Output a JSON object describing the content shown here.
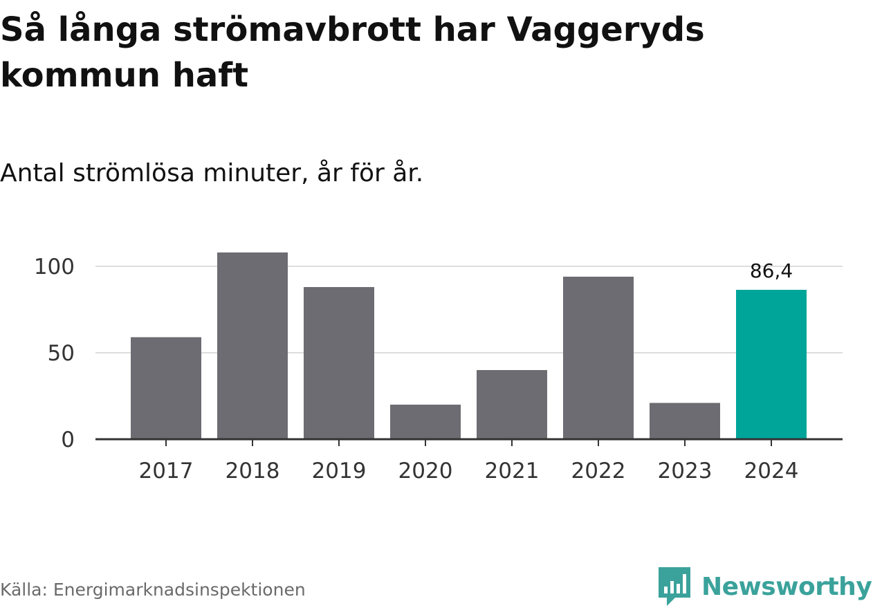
{
  "title": "Så långa strömavbrott har Vaggeryds kommun haft",
  "subtitle": "Antal strömlösa minuter, år för år.",
  "source": "Källa: Energimarknadsinspektionen",
  "brand": {
    "name": "Newsworthy",
    "icon": "newsworthy-logo-icon",
    "color": "#3aa29b"
  },
  "colors": {
    "bar": "#6d6c72",
    "highlight": "#00a59a",
    "grid": "#dddddd",
    "axis": "#333333"
  },
  "chart_data": {
    "type": "bar",
    "categories": [
      "2017",
      "2018",
      "2019",
      "2020",
      "2021",
      "2022",
      "2023",
      "2024"
    ],
    "values": [
      59,
      108,
      88,
      20,
      40,
      94,
      21,
      86.4
    ],
    "highlight_index": 7,
    "data_labels": [
      {
        "index": 7,
        "text": "86,4"
      }
    ],
    "ylim": [
      0,
      110
    ],
    "yticks": [
      0,
      50,
      100
    ],
    "ytick_labels": [
      "0",
      "50",
      "100"
    ],
    "grid": true,
    "xlabel": "",
    "ylabel": ""
  }
}
